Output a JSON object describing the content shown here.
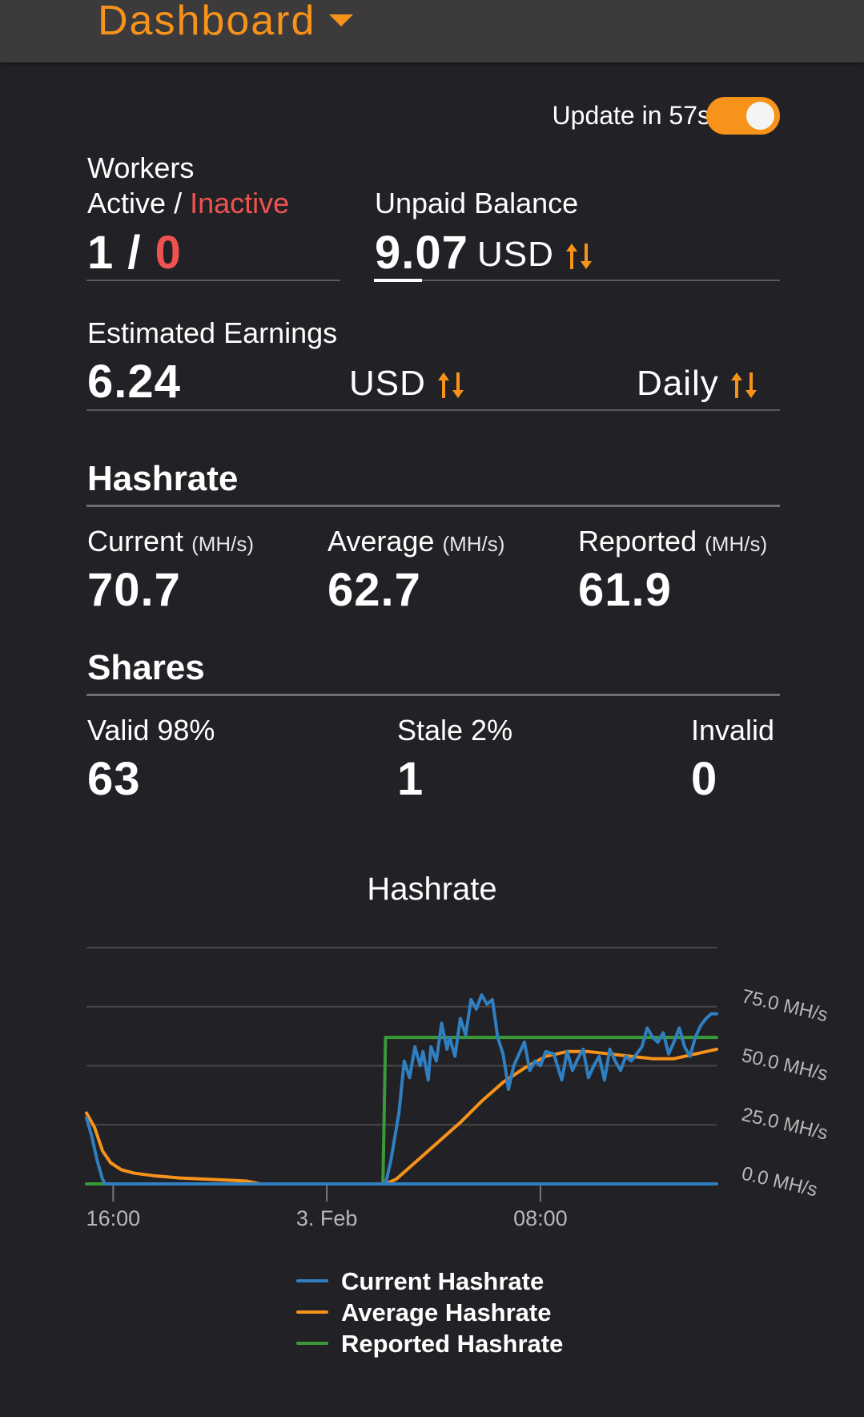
{
  "header": {
    "title": "Dashboard",
    "dropdown_icon": "caret-down-icon"
  },
  "update": {
    "label": "Update in 57s",
    "auto_update_enabled": true
  },
  "workers": {
    "title": "Workers",
    "active_label": "Active",
    "separator": "/",
    "inactive_label": "Inactive",
    "active_count": "1",
    "slash": "/",
    "inactive_count": "0"
  },
  "balance": {
    "title": "Unpaid Balance",
    "value": "9.07",
    "currency": "USD",
    "icon": "sort-arrows-icon"
  },
  "earnings": {
    "title": "Estimated Earnings",
    "value": "6.24",
    "currency": "USD",
    "period": "Daily",
    "icon": "sort-arrows-icon"
  },
  "hashrate": {
    "title": "Hashrate",
    "unit": "(MH/s)",
    "current_label": "Current",
    "current_value": "70.7",
    "average_label": "Average",
    "average_value": "62.7",
    "reported_label": "Reported",
    "reported_value": "61.9"
  },
  "shares": {
    "title": "Shares",
    "valid_label": "Valid 98%",
    "valid_value": "63",
    "stale_label": "Stale 2%",
    "stale_value": "1",
    "invalid_label": "Invalid",
    "invalid_value": "0"
  },
  "colors": {
    "accent": "#f7931a",
    "inactive": "#ef5350",
    "current": "#2f7fc1",
    "average": "#f7931a",
    "reported": "#3a9a3a"
  },
  "chart_data": {
    "type": "line",
    "title": "Hashrate",
    "x_unit": "hours",
    "xticks": [
      {
        "x": 16,
        "label": "16:00"
      },
      {
        "x": 24,
        "label": "3. Feb"
      },
      {
        "x": 32,
        "label": "08:00"
      }
    ],
    "xlim": [
      15,
      38.6
    ],
    "yticks": [
      "0.0 MH/s",
      "25.0 MH/s",
      "50.0 MH/s",
      "75.0 MH/s"
    ],
    "ylim": [
      0,
      100
    ],
    "ytick_values": [
      0,
      25,
      50,
      75,
      100
    ],
    "series": [
      {
        "name": "Current Hashrate",
        "color": "#2f7fc1",
        "x": [
          15.0,
          15.2,
          15.4,
          15.6,
          15.7,
          38.6
        ],
        "y": [
          28,
          20,
          10,
          2,
          0,
          0
        ],
        "x2": [
          26.2,
          26.4,
          26.7,
          26.9,
          27.1,
          27.3,
          27.5,
          27.6,
          27.8,
          27.9,
          28.1,
          28.3,
          28.5,
          28.6,
          28.8,
          29.0,
          29.2,
          29.4,
          29.6,
          29.8,
          30.0,
          30.2,
          30.4,
          30.6,
          30.7,
          30.8,
          31.0,
          31.2,
          31.4,
          31.6,
          31.8,
          32.0,
          32.2,
          32.5,
          32.8,
          33.0,
          33.2,
          33.4,
          33.6,
          33.8,
          34.0,
          34.2,
          34.4,
          34.6,
          34.8,
          35.0,
          35.2,
          35.4,
          35.6,
          35.8,
          36.0,
          36.2,
          36.4,
          36.6,
          36.8,
          37.0,
          37.2,
          37.4,
          37.6,
          37.8,
          38.0,
          38.2,
          38.4,
          38.6
        ],
        "y2": [
          0,
          10,
          30,
          52,
          45,
          58,
          50,
          56,
          44,
          58,
          52,
          68,
          57,
          62,
          54,
          70,
          63,
          78,
          74,
          80,
          76,
          78,
          62,
          55,
          48,
          40,
          50,
          55,
          60,
          48,
          52,
          50,
          56,
          55,
          44,
          56,
          48,
          53,
          57,
          45,
          50,
          54,
          44,
          57,
          52,
          48,
          54,
          52,
          55,
          58,
          66,
          62,
          60,
          64,
          55,
          60,
          66,
          58,
          54,
          62,
          67,
          70,
          72,
          72
        ]
      },
      {
        "name": "Average Hashrate",
        "color": "#f7931a",
        "x": [
          15.0,
          15.3,
          15.6,
          15.9,
          16.3,
          16.8,
          17.5,
          18.5,
          19.5,
          20.5,
          21.0,
          21.5,
          26.2,
          26.6,
          27.0,
          27.6,
          28.2,
          29.0,
          29.8,
          30.6,
          31.4,
          32.2,
          33.0,
          33.8,
          34.6,
          35.4,
          36.2,
          37.0,
          37.8,
          38.6
        ],
        "y": [
          30,
          24,
          14,
          9,
          6,
          4.5,
          3.5,
          2.5,
          2,
          1.5,
          1.2,
          0,
          0,
          2,
          6,
          12,
          18,
          26,
          35,
          43,
          49,
          54,
          56,
          56,
          55,
          54,
          53,
          53,
          55,
          57
        ]
      },
      {
        "name": "Reported Hashrate",
        "color": "#3a9a3a",
        "x": [
          15.0,
          26.1,
          26.2,
          38.6
        ],
        "y": [
          0,
          0,
          62,
          62
        ]
      }
    ],
    "legend": [
      "Current Hashrate",
      "Average Hashrate",
      "Reported Hashrate"
    ],
    "legend_position": "bottom",
    "grid": true
  }
}
